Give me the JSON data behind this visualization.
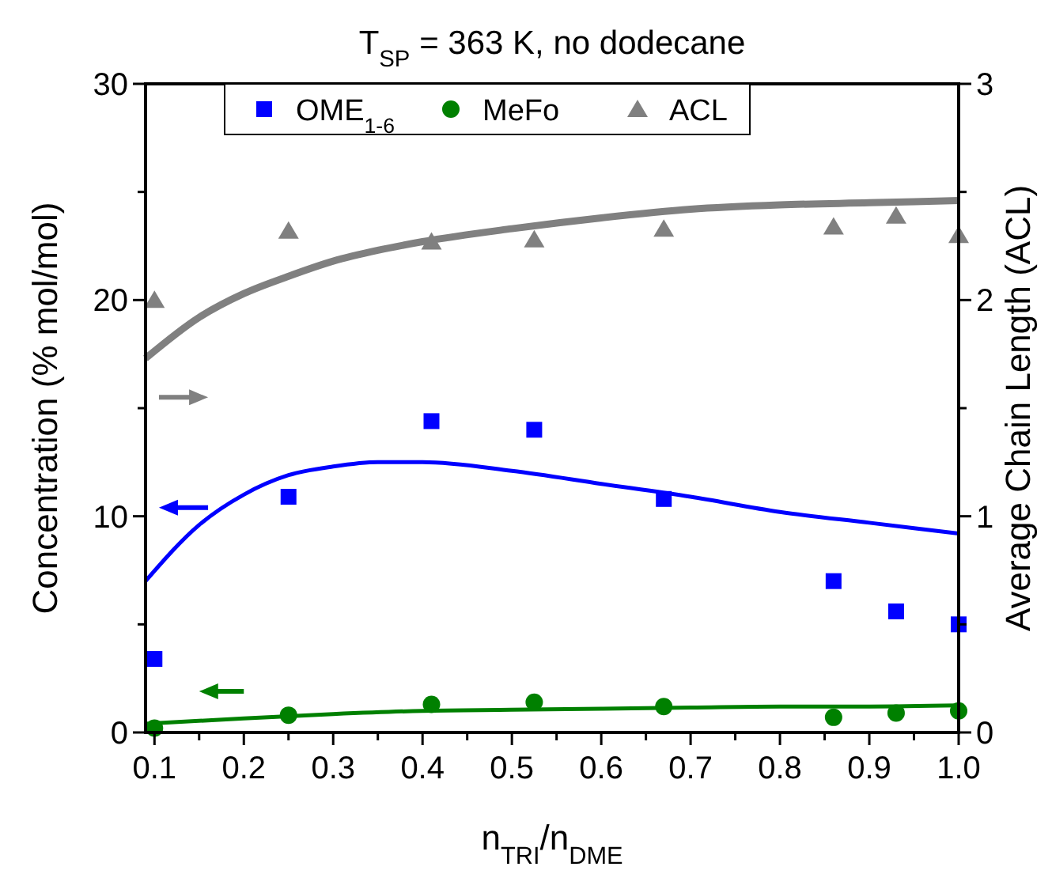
{
  "chart_data": {
    "type": "scatter",
    "title": "T$_{SP}$ = 363 K, no dodecane",
    "xlabel": "n$_{TRI}$/n$_{DME}$",
    "ylabel": "Concentration (% mol/mol)",
    "y2label": "Average Chain Length (ACL)",
    "xlim": [
      0.09,
      1.0
    ],
    "xticks": [
      {
        "value": 0.1,
        "label": "0.1"
      },
      {
        "value": 0.15,
        "label": null
      },
      {
        "value": 0.2,
        "label": "0.2"
      },
      {
        "value": 0.25,
        "label": null
      },
      {
        "value": 0.3,
        "label": "0.3"
      },
      {
        "value": 0.35,
        "label": null
      },
      {
        "value": 0.4,
        "label": "0.4"
      },
      {
        "value": 0.45,
        "label": null
      },
      {
        "value": 0.5,
        "label": "0.5"
      },
      {
        "value": 0.55,
        "label": null
      },
      {
        "value": 0.6,
        "label": "0.6"
      },
      {
        "value": 0.65,
        "label": null
      },
      {
        "value": 0.7,
        "label": "0.7"
      },
      {
        "value": 0.75,
        "label": null
      },
      {
        "value": 0.8,
        "label": "0.8"
      },
      {
        "value": 0.85,
        "label": null
      },
      {
        "value": 0.9,
        "label": "0.9"
      },
      {
        "value": 0.95,
        "label": null
      },
      {
        "value": 1.0,
        "label": "1.0"
      }
    ],
    "ylim": [
      0,
      30
    ],
    "yticks": [
      0,
      {
        "value": 5,
        "label": null
      },
      10,
      {
        "value": 15,
        "label": null
      },
      20,
      {
        "value": 25,
        "label": null
      },
      30
    ],
    "y2lim": [
      0,
      3
    ],
    "y2ticks": [
      0,
      {
        "value": 0.5,
        "label": null
      },
      1,
      {
        "value": 1.5,
        "label": null
      },
      2,
      {
        "value": 2.5,
        "label": null
      },
      3
    ],
    "legend": "top",
    "grid": false,
    "series": [
      {
        "name": "OME$_{1-6}$",
        "marker": "square",
        "color": "#0000ff",
        "x": [
          0.1,
          0.25,
          0.41,
          0.525,
          0.67,
          0.86,
          0.93,
          1.0
        ],
        "values": [
          3.4,
          10.9,
          14.4,
          14.0,
          10.8,
          7.0,
          5.6,
          5.0
        ]
      },
      {
        "name": "MeFo",
        "marker": "circle",
        "color": "#008000",
        "x": [
          0.1,
          0.25,
          0.41,
          0.525,
          0.67,
          0.86,
          0.93,
          1.0
        ],
        "values": [
          0.2,
          0.8,
          1.3,
          1.4,
          1.2,
          0.7,
          0.9,
          1.0
        ]
      },
      {
        "name": "ACL",
        "marker": "triangle",
        "color": "#808080",
        "axis": "y2",
        "x": [
          0.1,
          0.25,
          0.41,
          0.525,
          0.67,
          0.86,
          0.93,
          1.0
        ],
        "values": [
          2.0,
          2.32,
          2.27,
          2.28,
          2.33,
          2.34,
          2.39,
          2.3
        ]
      },
      {
        "type": "line",
        "marker": "none",
        "color": "#0000ff",
        "x": [
          0.09,
          0.15,
          0.2,
          0.25,
          0.3,
          0.35,
          0.4,
          0.5,
          0.6,
          0.7,
          0.8,
          0.9,
          1.0
        ],
        "values": [
          7.0,
          9.6,
          11.0,
          11.9,
          12.3,
          12.5,
          12.5,
          12.1,
          11.5,
          10.9,
          10.2,
          9.7,
          9.2
        ]
      },
      {
        "type": "line",
        "marker": "none",
        "color": "#008000",
        "x": [
          0.09,
          0.2,
          0.3,
          0.4,
          0.5,
          0.6,
          0.7,
          0.8,
          0.9,
          1.0
        ],
        "values": [
          0.4,
          0.65,
          0.85,
          1.0,
          1.05,
          1.1,
          1.15,
          1.2,
          1.2,
          1.25
        ]
      },
      {
        "type": "line",
        "marker": "none",
        "color": "#808080",
        "axis": "y2",
        "x": [
          0.09,
          0.15,
          0.2,
          0.25,
          0.3,
          0.35,
          0.4,
          0.5,
          0.6,
          0.7,
          0.8,
          0.9,
          1.0
        ],
        "values": [
          1.73,
          1.92,
          2.03,
          2.11,
          2.18,
          2.23,
          2.27,
          2.33,
          2.38,
          2.42,
          2.44,
          2.45,
          2.46
        ]
      }
    ]
  }
}
